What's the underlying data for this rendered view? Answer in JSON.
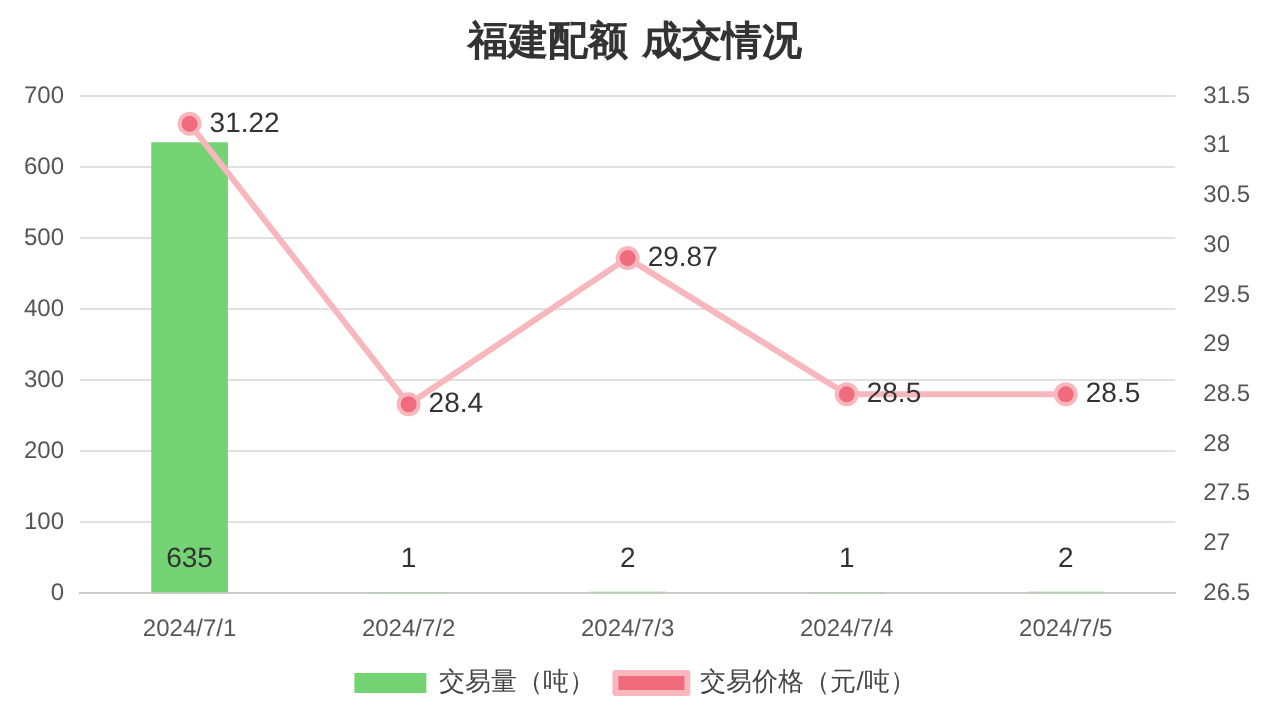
{
  "chart_data": {
    "type": "bar",
    "title": "福建配额 成交情况",
    "categories": [
      "2024/7/1",
      "2024/7/2",
      "2024/7/3",
      "2024/7/4",
      "2024/7/5"
    ],
    "series": [
      {
        "name": "交易量（吨）",
        "color": "#74d474",
        "values": [
          635,
          1,
          2,
          1,
          2
        ]
      },
      {
        "name": "交易价格（元/吨）",
        "type": "line",
        "axis": "y2",
        "color": "#f7b7bc",
        "values": [
          31.22,
          28.4,
          29.87,
          28.5,
          28.5
        ]
      }
    ],
    "ylim": [
      0,
      700
    ],
    "yticks": [
      0,
      100,
      200,
      300,
      400,
      500,
      600,
      700
    ],
    "y2lim": [
      26.5,
      31.5
    ],
    "y2ticks": [
      26.5,
      27,
      27.5,
      28,
      28.5,
      29,
      29.5,
      30,
      30.5,
      31,
      31.5
    ],
    "grid": "y",
    "legend": "bottom",
    "marker": "circle",
    "data_labels": true
  }
}
